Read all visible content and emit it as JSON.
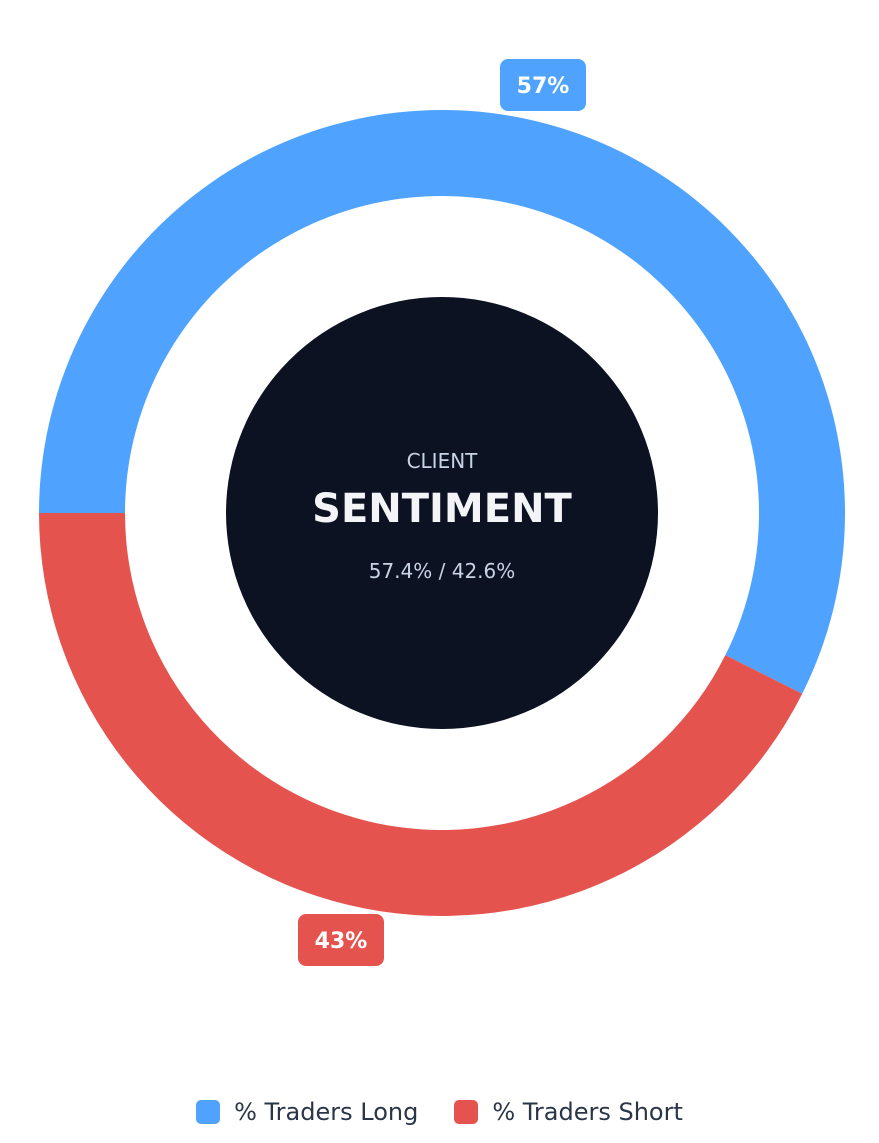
{
  "chart_data": {
    "type": "pie",
    "variant": "donut",
    "categories": [
      "% Traders Long",
      "% Traders Short"
    ],
    "values": [
      57.4,
      42.6
    ],
    "colors": [
      "#4fa3ff",
      "#e5534f"
    ],
    "data_labels": [
      "57%",
      "43%"
    ],
    "center": {
      "kicker": "CLIENT",
      "title": "SENTIMENT",
      "subtitle": "57.4% / 42.6%",
      "background": "#0c1222"
    },
    "legend": {
      "position": "bottom-center",
      "items": [
        {
          "label": "% Traders Long",
          "color": "#4fa3ff"
        },
        {
          "label": "% Traders Short",
          "color": "#e5534f"
        }
      ]
    }
  }
}
